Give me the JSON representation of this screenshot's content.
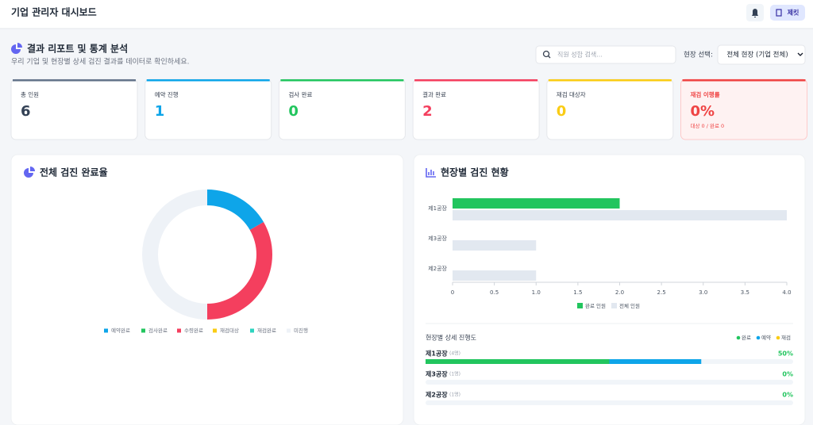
{
  "header": {
    "title": "기업 관리자 대시보드",
    "user_button": "제킷"
  },
  "report": {
    "title": "결과 리포트 및 통계 분석",
    "subtitle": "우리 기업 및 현장별 상세 검진 결과를 데이터로 확인하세요.",
    "search_placeholder": "직원 성함 검색...",
    "site_filter_label": "현장 선택:",
    "site_filter_value": "전체 현장 (기업 전체)"
  },
  "stats": [
    {
      "label": "총 인원",
      "value": 6,
      "color": "#64748b",
      "text_color": "#334155"
    },
    {
      "label": "예약 진행",
      "value": 1,
      "color": "#0ea5e9",
      "text_color": "#0ea5e9"
    },
    {
      "label": "검사 완료",
      "value": 0,
      "color": "#22c55e",
      "text_color": "#22c55e"
    },
    {
      "label": "결과 완료",
      "value": 2,
      "color": "#f43f5e",
      "text_color": "#f43f5e"
    },
    {
      "label": "재검 대상자",
      "value": 0,
      "color": "#facc15",
      "text_color": "#facc15"
    },
    {
      "label": "재검 이행률",
      "value": "0%",
      "note": "대상 0 / 완료 0",
      "color": "#ef4444",
      "text_color": "#ef4444"
    }
  ],
  "donut_chart": {
    "type": "pie",
    "title": "전체 검진 완료율",
    "categories": [
      "예약완료",
      "검사완료",
      "수령완료",
      "재검대상",
      "재검완료",
      "미진행"
    ],
    "values": [
      1,
      0,
      2,
      0,
      0,
      3
    ],
    "colors": [
      "#0ea5e9",
      "#22c55e",
      "#f43f5e",
      "#facc15",
      "#2dd4bf",
      "#eef2f7"
    ]
  },
  "bar_chart": {
    "type": "bar",
    "orientation": "horizontal",
    "title": "현장별 검진 현황",
    "categories": [
      "제1공장",
      "제3공장",
      "제2공장"
    ],
    "series": [
      {
        "name": "완료 인원",
        "color": "#22c55e",
        "values": [
          2,
          0,
          0
        ]
      },
      {
        "name": "전체 인원",
        "color": "#e2e8f0",
        "values": [
          4,
          1,
          1
        ]
      }
    ],
    "xlim": [
      0,
      4
    ],
    "xticks": [
      0,
      0.5,
      {
        "value": 1,
        "label": "1.0"
      },
      1.5,
      {
        "value": 2,
        "label": "2.0"
      },
      2.5,
      {
        "value": 3,
        "label": "3.0"
      },
      3.5,
      {
        "value": 4,
        "label": "4.0"
      }
    ]
  },
  "progress": {
    "title": "현장별 상세 진행도",
    "legend": [
      {
        "name": "완료",
        "color": "#22c55e"
      },
      {
        "name": "예약",
        "color": "#0ea5e9"
      },
      {
        "name": "재검",
        "color": "#facc15"
      }
    ],
    "rows": [
      {
        "name": "제1공장",
        "total_label": "(4명)",
        "rate_label": "50%",
        "total": 4,
        "complete": 2,
        "reserved": 1
      },
      {
        "name": "제3공장",
        "total_label": "(1명)",
        "rate_label": "0%",
        "total": 1,
        "complete": 0,
        "reserved": 0
      },
      {
        "name": "제2공장",
        "total_label": "(1명)",
        "rate_label": "0%",
        "total": 1,
        "complete": 0,
        "reserved": 0
      }
    ]
  }
}
